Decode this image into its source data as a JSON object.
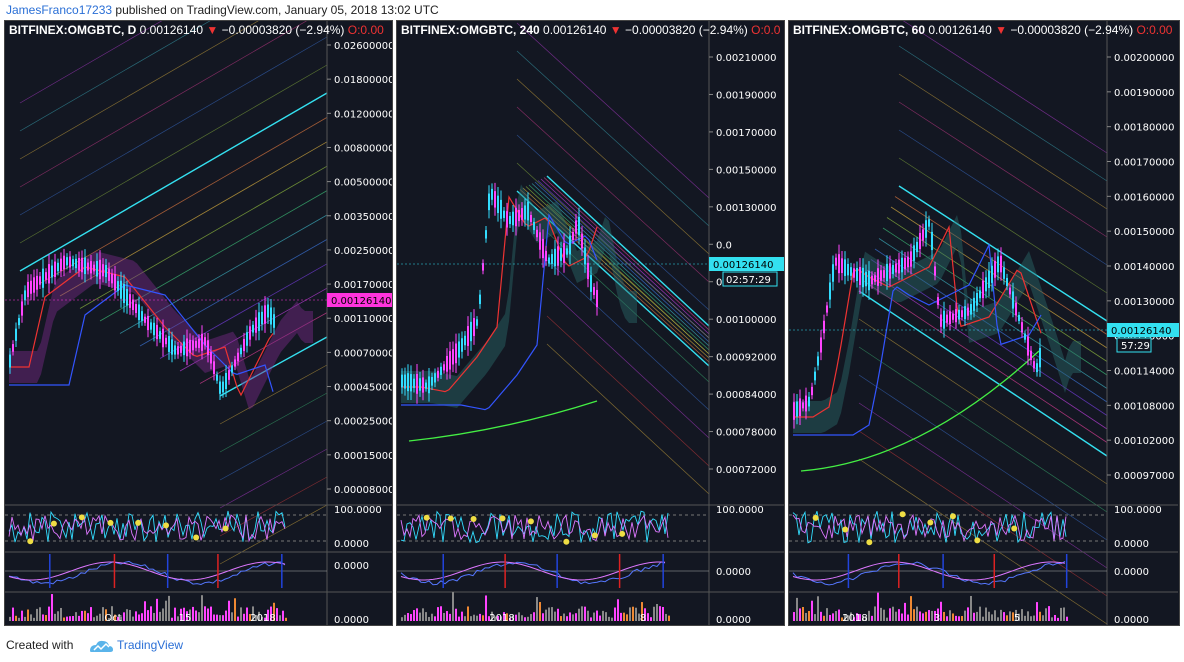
{
  "header": {
    "author": "JamesFranco17233",
    "published": "published on TradingView.com, January 05, 2018 13:02 UTC"
  },
  "footer": {
    "created_with": "Created with",
    "brand": "TradingView"
  },
  "chart_data": [
    {
      "type": "line",
      "symbol": "BITFINEX:OMGBTC, D",
      "last": "0.00126140",
      "change": "−0.00003820 (−2.94%)",
      "open_label": "O:0.00",
      "price_ticks": [
        "0.02600000",
        "0.01800000",
        "0.01200000",
        "0.00800000",
        "0.00500000",
        "0.00350000",
        "0.00250000",
        "0.00170000",
        "0.00110000",
        "0.00070000",
        "0.00045000",
        "0.00025000",
        "0.00015000",
        "0.00008000"
      ],
      "current_price_tag": "0.00126140",
      "osc1_ticks": [
        "100.0000",
        "0.0000"
      ],
      "osc2_ticks": [
        "0.0000"
      ],
      "volume_ticks": [
        "0.0000"
      ],
      "x_ticks": [
        "Oct",
        "15",
        "2018"
      ]
    },
    {
      "type": "line",
      "symbol": "BITFINEX:OMGBTC, 240",
      "last": "0.00126140",
      "change": "−0.00003820 (−2.94%)",
      "open_label": "O:0.0",
      "price_ticks": [
        "0.00210000",
        "0.00190000",
        "0.00170000",
        "0.00150000",
        "0.00130000",
        "0.0",
        "0.00110000",
        "0.00100000",
        "0.00092000",
        "0.00084000",
        "0.00078000",
        "0.00072000"
      ],
      "current_price_tag": "0.00126140",
      "countdown_tag": "02:57:29",
      "osc1_ticks": [
        "100.0000"
      ],
      "osc2_ticks": [
        "0.0000"
      ],
      "volume_ticks": [
        "0.0000"
      ],
      "x_ticks": [
        "2018",
        "8"
      ]
    },
    {
      "type": "line",
      "symbol": "BITFINEX:OMGBTC, 60",
      "last": "0.00126140",
      "change": "−0.00003820 (−2.94%)",
      "open_label": "O:0.00",
      "price_ticks": [
        "0.00200000",
        "0.00190000",
        "0.00180000",
        "0.00170000",
        "0.00160000",
        "0.00150000",
        "0.00140000",
        "0.00130000",
        "0.00120000",
        "0.00114000",
        "0.00108000",
        "0.00102000",
        "0.00097000"
      ],
      "current_price_tag": "0.00126140",
      "countdown_tag": "57:29",
      "osc1_ticks": [
        "100.0000",
        "0.0000"
      ],
      "osc2_ticks": [
        "0.0000"
      ],
      "volume_ticks": [
        "0.0000"
      ],
      "x_ticks": [
        "2018",
        "3",
        "5"
      ]
    }
  ],
  "colors": {
    "background": "#131722",
    "candle": "#ff44ff",
    "candle_alt": "#33ddff",
    "price_tag": "#ff33dd",
    "price_tag2": "#33e0f0",
    "down_arrow": "#e33333"
  }
}
